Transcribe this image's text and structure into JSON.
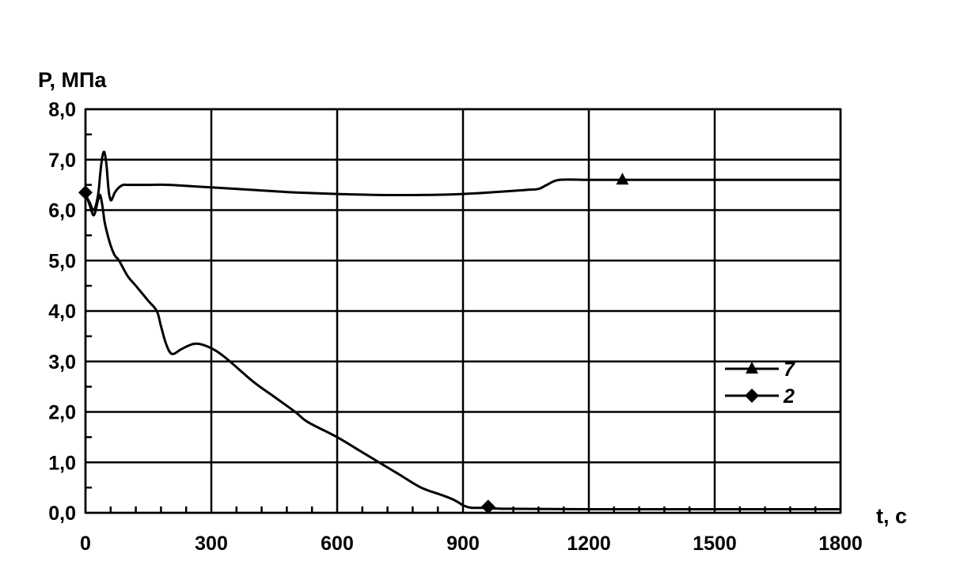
{
  "chart_data": {
    "type": "line",
    "title": "",
    "ylabel": "P, МПа",
    "xlabel": "t, c",
    "xlim": [
      0,
      1800
    ],
    "ylim": [
      0,
      8
    ],
    "x_ticks": [
      0,
      300,
      600,
      900,
      1200,
      1500,
      1800
    ],
    "x_tick_labels": [
      "0",
      "300",
      "600",
      "900",
      "1200",
      "1500",
      "1800"
    ],
    "y_ticks": [
      0,
      1,
      2,
      3,
      4,
      5,
      6,
      7,
      8
    ],
    "y_tick_labels": [
      "0,0",
      "1,0",
      "2,0",
      "3,0",
      "4,0",
      "5,0",
      "6,0",
      "7,0",
      "8,0"
    ],
    "grid": true,
    "legend_position": "right",
    "series": [
      {
        "name": "7",
        "marker": "triangle",
        "marker_points": [
          [
            1280,
            6.6
          ]
        ],
        "x": [
          0,
          10,
          20,
          30,
          35,
          40,
          45,
          50,
          55,
          60,
          65,
          70,
          80,
          90,
          100,
          120,
          150,
          200,
          300,
          400,
          500,
          600,
          700,
          800,
          900,
          1000,
          1050,
          1080,
          1100,
          1130,
          1200,
          1300,
          1500,
          1800
        ],
        "y": [
          6.3,
          6.15,
          6.0,
          6.3,
          6.7,
          7.05,
          7.15,
          6.9,
          6.4,
          6.2,
          6.25,
          6.35,
          6.45,
          6.5,
          6.5,
          6.5,
          6.5,
          6.5,
          6.45,
          6.4,
          6.35,
          6.32,
          6.3,
          6.3,
          6.32,
          6.37,
          6.4,
          6.42,
          6.5,
          6.6,
          6.6,
          6.6,
          6.6,
          6.6
        ]
      },
      {
        "name": "2",
        "marker": "diamond",
        "marker_points": [
          [
            0,
            6.35
          ],
          [
            960,
            0.12
          ]
        ],
        "x": [
          0,
          10,
          20,
          30,
          35,
          40,
          45,
          50,
          60,
          70,
          80,
          100,
          120,
          150,
          170,
          180,
          190,
          200,
          210,
          230,
          260,
          290,
          330,
          400,
          450,
          500,
          530,
          600,
          650,
          700,
          750,
          800,
          850,
          880,
          900,
          920,
          960,
          1000,
          1200,
          1500,
          1800
        ],
        "y": [
          6.35,
          6.1,
          5.9,
          6.2,
          6.3,
          6.1,
          5.8,
          5.6,
          5.3,
          5.1,
          5.0,
          4.7,
          4.5,
          4.2,
          4.0,
          3.7,
          3.4,
          3.2,
          3.15,
          3.25,
          3.35,
          3.3,
          3.1,
          2.6,
          2.3,
          2.0,
          1.8,
          1.5,
          1.25,
          1.0,
          0.75,
          0.5,
          0.35,
          0.25,
          0.15,
          0.1,
          0.1,
          0.08,
          0.07,
          0.07,
          0.07
        ]
      }
    ]
  }
}
